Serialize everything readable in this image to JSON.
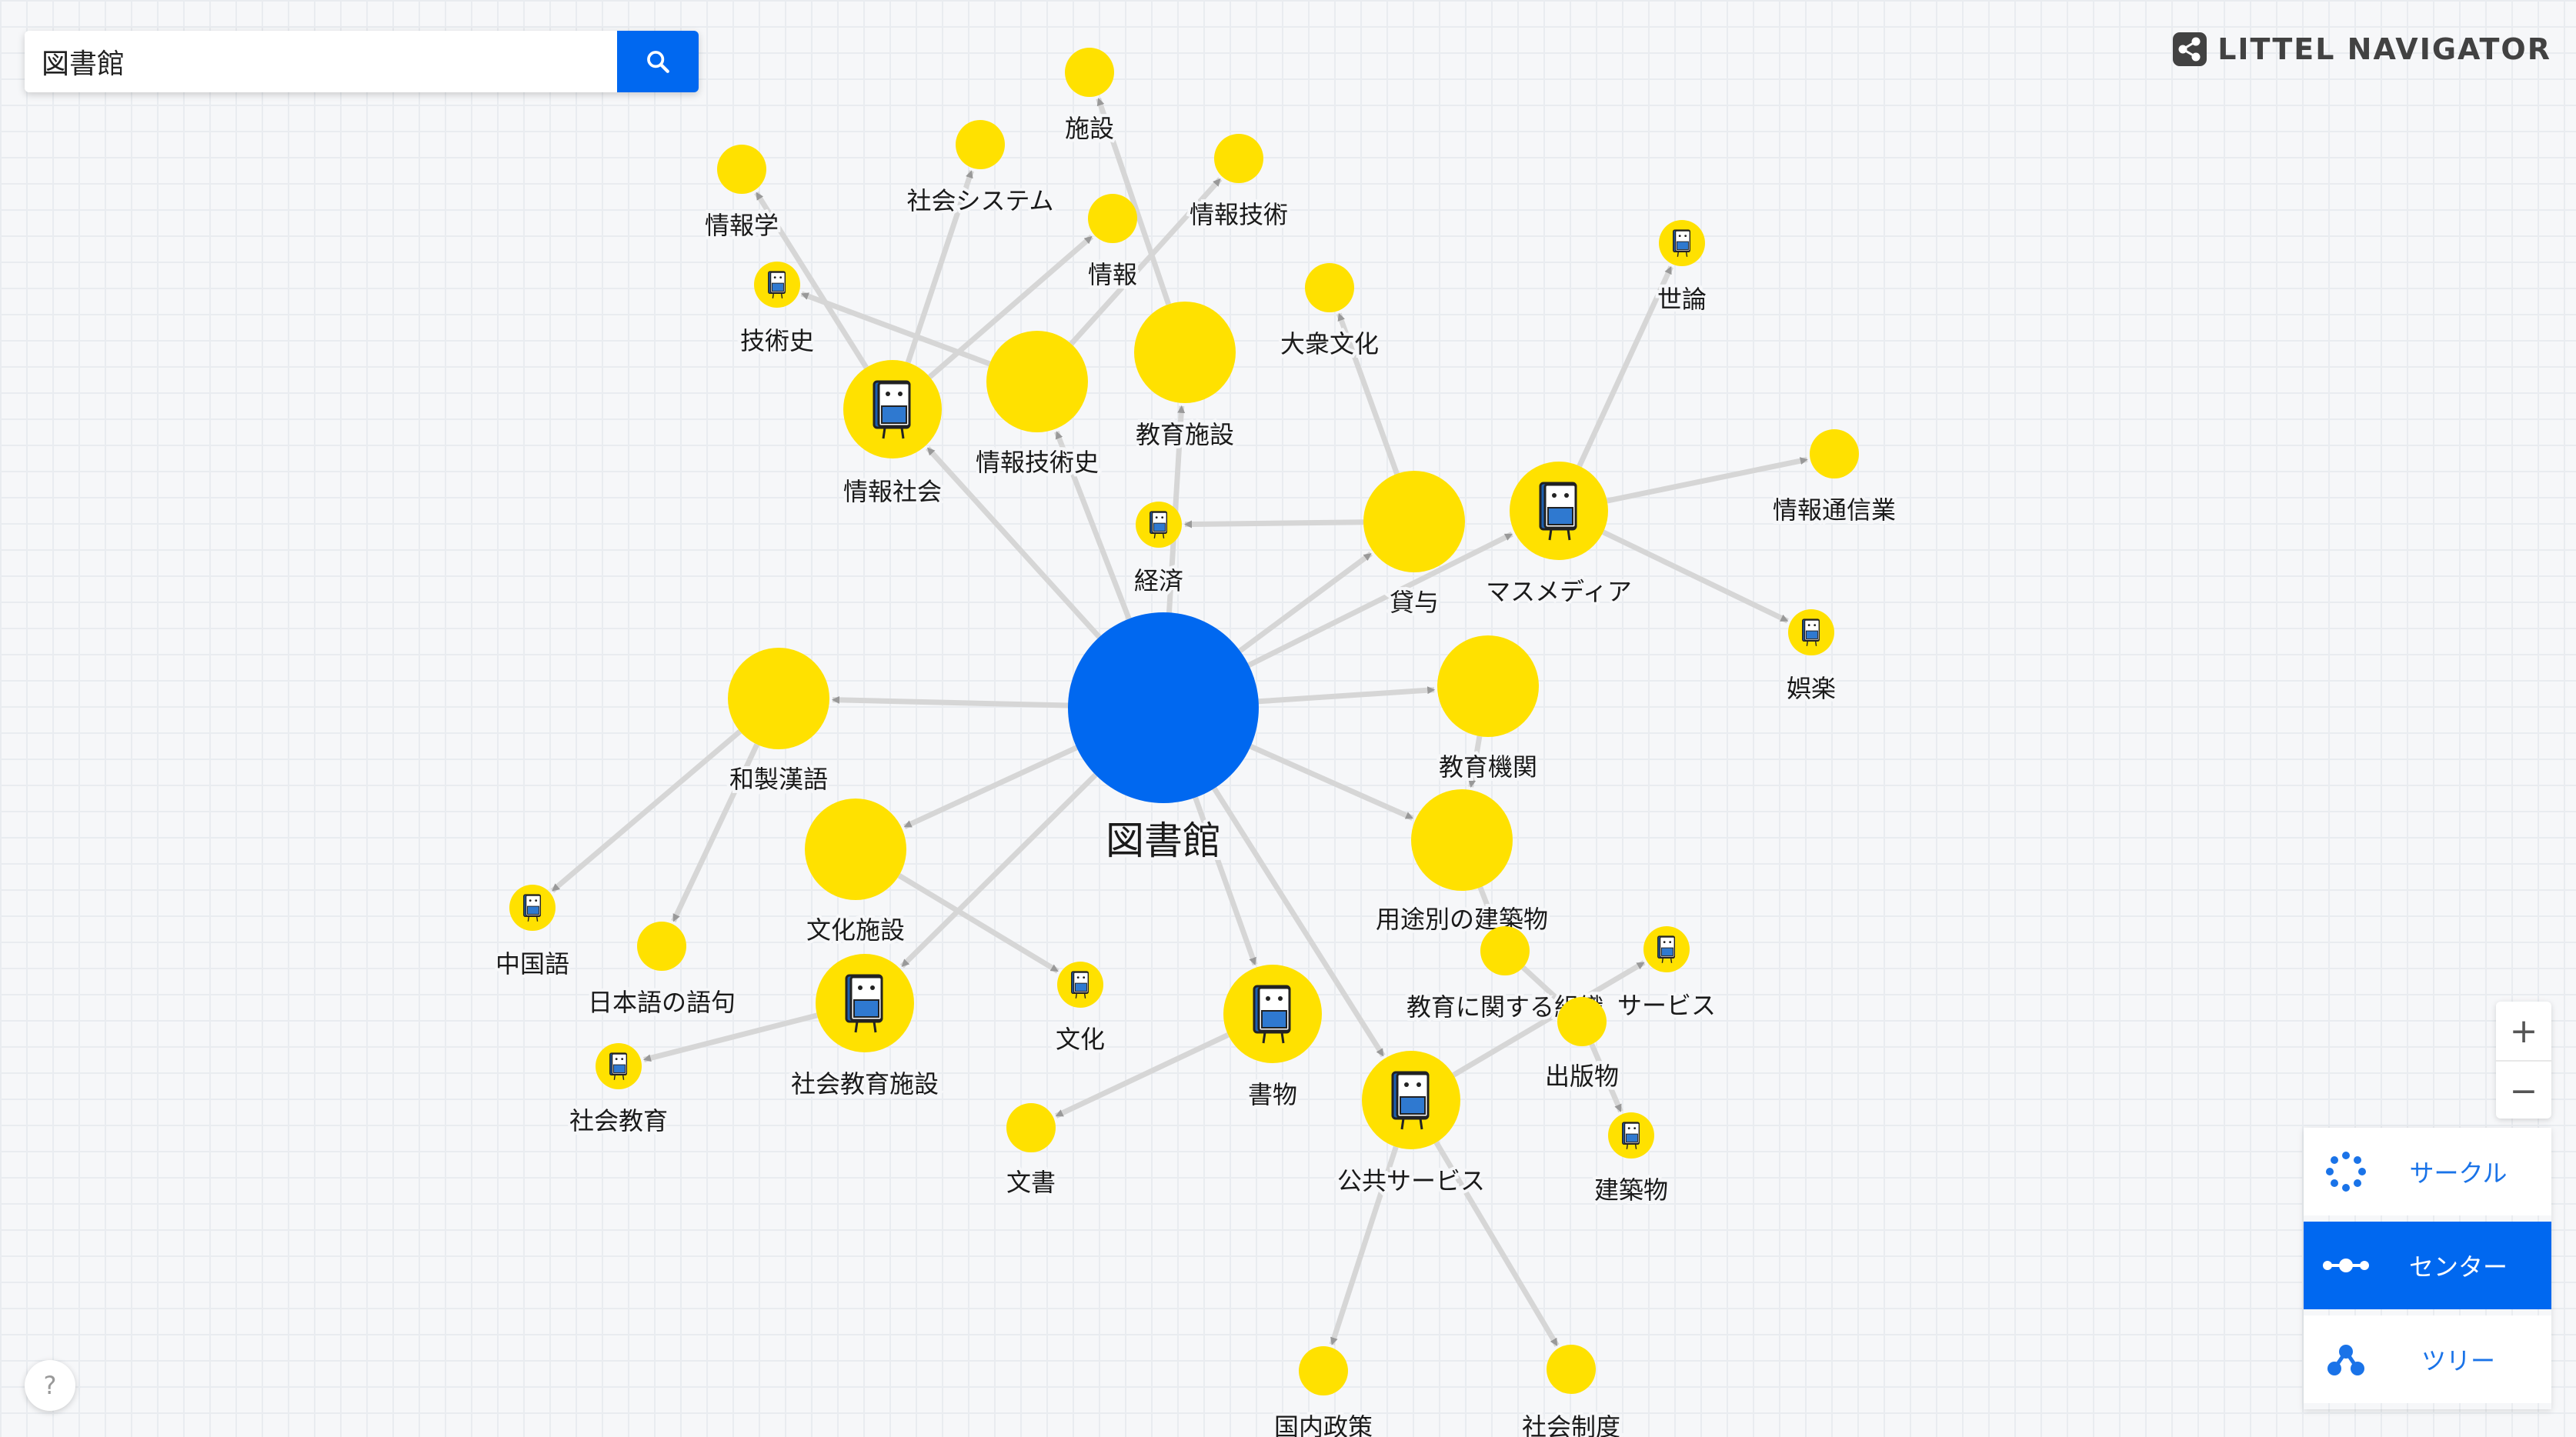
{
  "search": {
    "value": "図書館"
  },
  "brand": {
    "name": "LITTEL NAVIGATOR"
  },
  "zoom": {
    "in_label": "+",
    "out_label": "−"
  },
  "modes": [
    {
      "label": "サークル",
      "icon": "circle-dots-icon",
      "active": false
    },
    {
      "label": "センター",
      "icon": "center-dots-icon",
      "active": true
    },
    {
      "label": "ツリー",
      "icon": "tree-icon",
      "active": false
    }
  ],
  "help": {
    "label": "?"
  },
  "colors": {
    "accent": "#0068f0",
    "node": "#ffe100",
    "edge": "#d6d6d6",
    "arrow": "#999999"
  },
  "graph": {
    "center": {
      "label": "図書館"
    },
    "nodes": [
      {
        "id": "n0",
        "label": "情報学",
        "icon": false
      },
      {
        "id": "n1",
        "label": "社会システム",
        "icon": false
      },
      {
        "id": "n2",
        "label": "施設",
        "icon": false
      },
      {
        "id": "n3",
        "label": "情報技術",
        "icon": false
      },
      {
        "id": "n4",
        "label": "情報",
        "icon": false
      },
      {
        "id": "n5",
        "label": "技術史",
        "icon": true
      },
      {
        "id": "n6",
        "label": "情報社会",
        "icon": true
      },
      {
        "id": "n7",
        "label": "情報技術史",
        "icon": false
      },
      {
        "id": "n8",
        "label": "教育施設",
        "icon": false
      },
      {
        "id": "n9",
        "label": "大衆文化",
        "icon": false
      },
      {
        "id": "n10",
        "label": "世論",
        "icon": true
      },
      {
        "id": "n11",
        "label": "経済",
        "icon": true
      },
      {
        "id": "n12",
        "label": "貸与",
        "icon": false
      },
      {
        "id": "n13",
        "label": "マスメディア",
        "icon": true
      },
      {
        "id": "n14",
        "label": "情報通信業",
        "icon": false
      },
      {
        "id": "n15",
        "label": "娯楽",
        "icon": true
      },
      {
        "id": "n16",
        "label": "和製漢語",
        "icon": false
      },
      {
        "id": "n17",
        "label": "教育機関",
        "icon": false
      },
      {
        "id": "n18",
        "label": "文化施設",
        "icon": false
      },
      {
        "id": "n19",
        "label": "用途別の建築物",
        "icon": false
      },
      {
        "id": "n20",
        "label": "中国語",
        "icon": true
      },
      {
        "id": "n21",
        "label": "日本語の語句",
        "icon": false
      },
      {
        "id": "n22",
        "label": "社会教育施設",
        "icon": true
      },
      {
        "id": "n23",
        "label": "文化",
        "icon": true
      },
      {
        "id": "n24",
        "label": "書物",
        "icon": true
      },
      {
        "id": "n25",
        "label": "教育に関する組織",
        "icon": false
      },
      {
        "id": "n26",
        "label": "サービス",
        "icon": true
      },
      {
        "id": "n27",
        "label": "出版物",
        "icon": false
      },
      {
        "id": "n28",
        "label": "社会教育",
        "icon": true
      },
      {
        "id": "n29",
        "label": "文書",
        "icon": false
      },
      {
        "id": "n30",
        "label": "公共サービス",
        "icon": true
      },
      {
        "id": "n31",
        "label": "建築物",
        "icon": true
      },
      {
        "id": "n32",
        "label": "国内政策",
        "icon": false
      },
      {
        "id": "n33",
        "label": "社会制度",
        "icon": false
      }
    ]
  }
}
